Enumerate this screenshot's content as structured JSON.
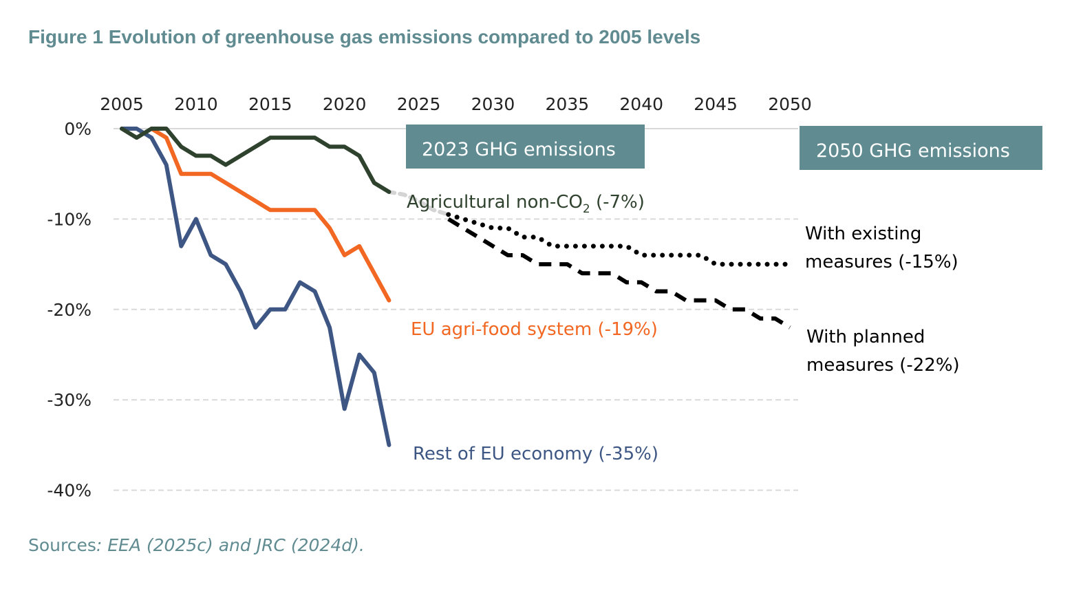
{
  "chart_data": {
    "type": "line",
    "title": "Figure 1 Evolution of greenhouse gas emissions compared to 2005 levels",
    "x_ticks": [
      2005,
      2010,
      2015,
      2020,
      2025,
      2030,
      2035,
      2040,
      2045,
      2050
    ],
    "y_ticks": [
      0,
      -10,
      -20,
      -30,
      -40
    ],
    "y_tick_labels": [
      "0%",
      "-10%",
      "-20%",
      "-30%",
      "-40%"
    ],
    "xlim": [
      2005,
      2050
    ],
    "ylim": [
      -40,
      0
    ],
    "grid": "horizontal",
    "series": [
      {
        "name": "Rest of EU economy",
        "label": "Rest of EU economy  (-35%)",
        "color": "#3d5683",
        "style": "solid",
        "x": [
          2005,
          2006,
          2007,
          2008,
          2009,
          2010,
          2011,
          2012,
          2013,
          2014,
          2015,
          2016,
          2017,
          2018,
          2019,
          2020,
          2021,
          2022,
          2023
        ],
        "values": [
          0,
          0,
          -1,
          -4,
          -13,
          -10,
          -14,
          -15,
          -18,
          -22,
          -20,
          -20,
          -17,
          -18,
          -22,
          -31,
          -25,
          -27,
          -35
        ]
      },
      {
        "name": "EU agri-food system",
        "label": "EU agri-food system (-19%)",
        "color": "#f26722",
        "style": "solid",
        "x": [
          2007,
          2008,
          2009,
          2010,
          2011,
          2012,
          2013,
          2014,
          2015,
          2016,
          2017,
          2018,
          2019,
          2020,
          2021,
          2022,
          2023
        ],
        "values": [
          0,
          -1,
          -5,
          -5,
          -5,
          -6,
          -7,
          -8,
          -9,
          -9,
          -9,
          -9,
          -11,
          -14,
          -13,
          -16,
          -19
        ]
      },
      {
        "name": "Agricultural non-CO2",
        "label": "Agricultural non-CO",
        "label_sub": "2",
        "label_suffix": " (-7%)",
        "color": "#2f422e",
        "style": "solid",
        "x": [
          2005,
          2006,
          2007,
          2008,
          2009,
          2010,
          2011,
          2012,
          2013,
          2014,
          2015,
          2016,
          2017,
          2018,
          2019,
          2020,
          2021,
          2022,
          2023
        ],
        "values": [
          0,
          -1,
          0,
          0,
          -2,
          -3,
          -3,
          -4,
          -3,
          -2,
          -1,
          -1,
          -1,
          -1,
          -2,
          -2,
          -3,
          -6,
          -7
        ]
      },
      {
        "name": "Transition",
        "color": "#d4d4d4",
        "style": "dotted-grey",
        "x": [
          2023,
          2024,
          2025,
          2026,
          2027
        ],
        "values": [
          -7,
          -7.3,
          -8,
          -9,
          -9.5
        ]
      },
      {
        "name": "With existing measures",
        "label": [
          "With existing",
          "measures (-15%)"
        ],
        "color": "#000000",
        "style": "dotted",
        "x": [
          2027,
          2028,
          2029,
          2030,
          2031,
          2032,
          2033,
          2034,
          2035,
          2036,
          2037,
          2038,
          2039,
          2040,
          2041,
          2042,
          2043,
          2044,
          2045,
          2046,
          2047,
          2048,
          2049,
          2050
        ],
        "values": [
          -9.5,
          -10,
          -10.5,
          -11,
          -11,
          -12,
          -12,
          -13,
          -13,
          -13,
          -13,
          -13,
          -13,
          -14,
          -14,
          -14,
          -14,
          -14,
          -15,
          -15,
          -15,
          -15,
          -15,
          -15
        ]
      },
      {
        "name": "With planned measures",
        "label": [
          "With planned",
          "measures  (-22%)"
        ],
        "color": "#000000",
        "style": "dashed",
        "x": [
          2027,
          2028,
          2029,
          2030,
          2031,
          2032,
          2033,
          2034,
          2035,
          2036,
          2037,
          2038,
          2039,
          2040,
          2041,
          2042,
          2043,
          2044,
          2045,
          2046,
          2047,
          2048,
          2049,
          2050
        ],
        "values": [
          -10,
          -11,
          -12,
          -13,
          -14,
          -14,
          -15,
          -15,
          -15,
          -16,
          -16,
          -16,
          -17,
          -17,
          -18,
          -18,
          -19,
          -19,
          -19,
          -20,
          -20,
          -21,
          -21,
          -22
        ]
      }
    ],
    "annotations": [
      "2023 GHG emissions",
      "2050 GHG emissions"
    ],
    "source": {
      "prefix": "Sources",
      "rest": ": EEA (2025c) and JRC (2024d)."
    }
  }
}
